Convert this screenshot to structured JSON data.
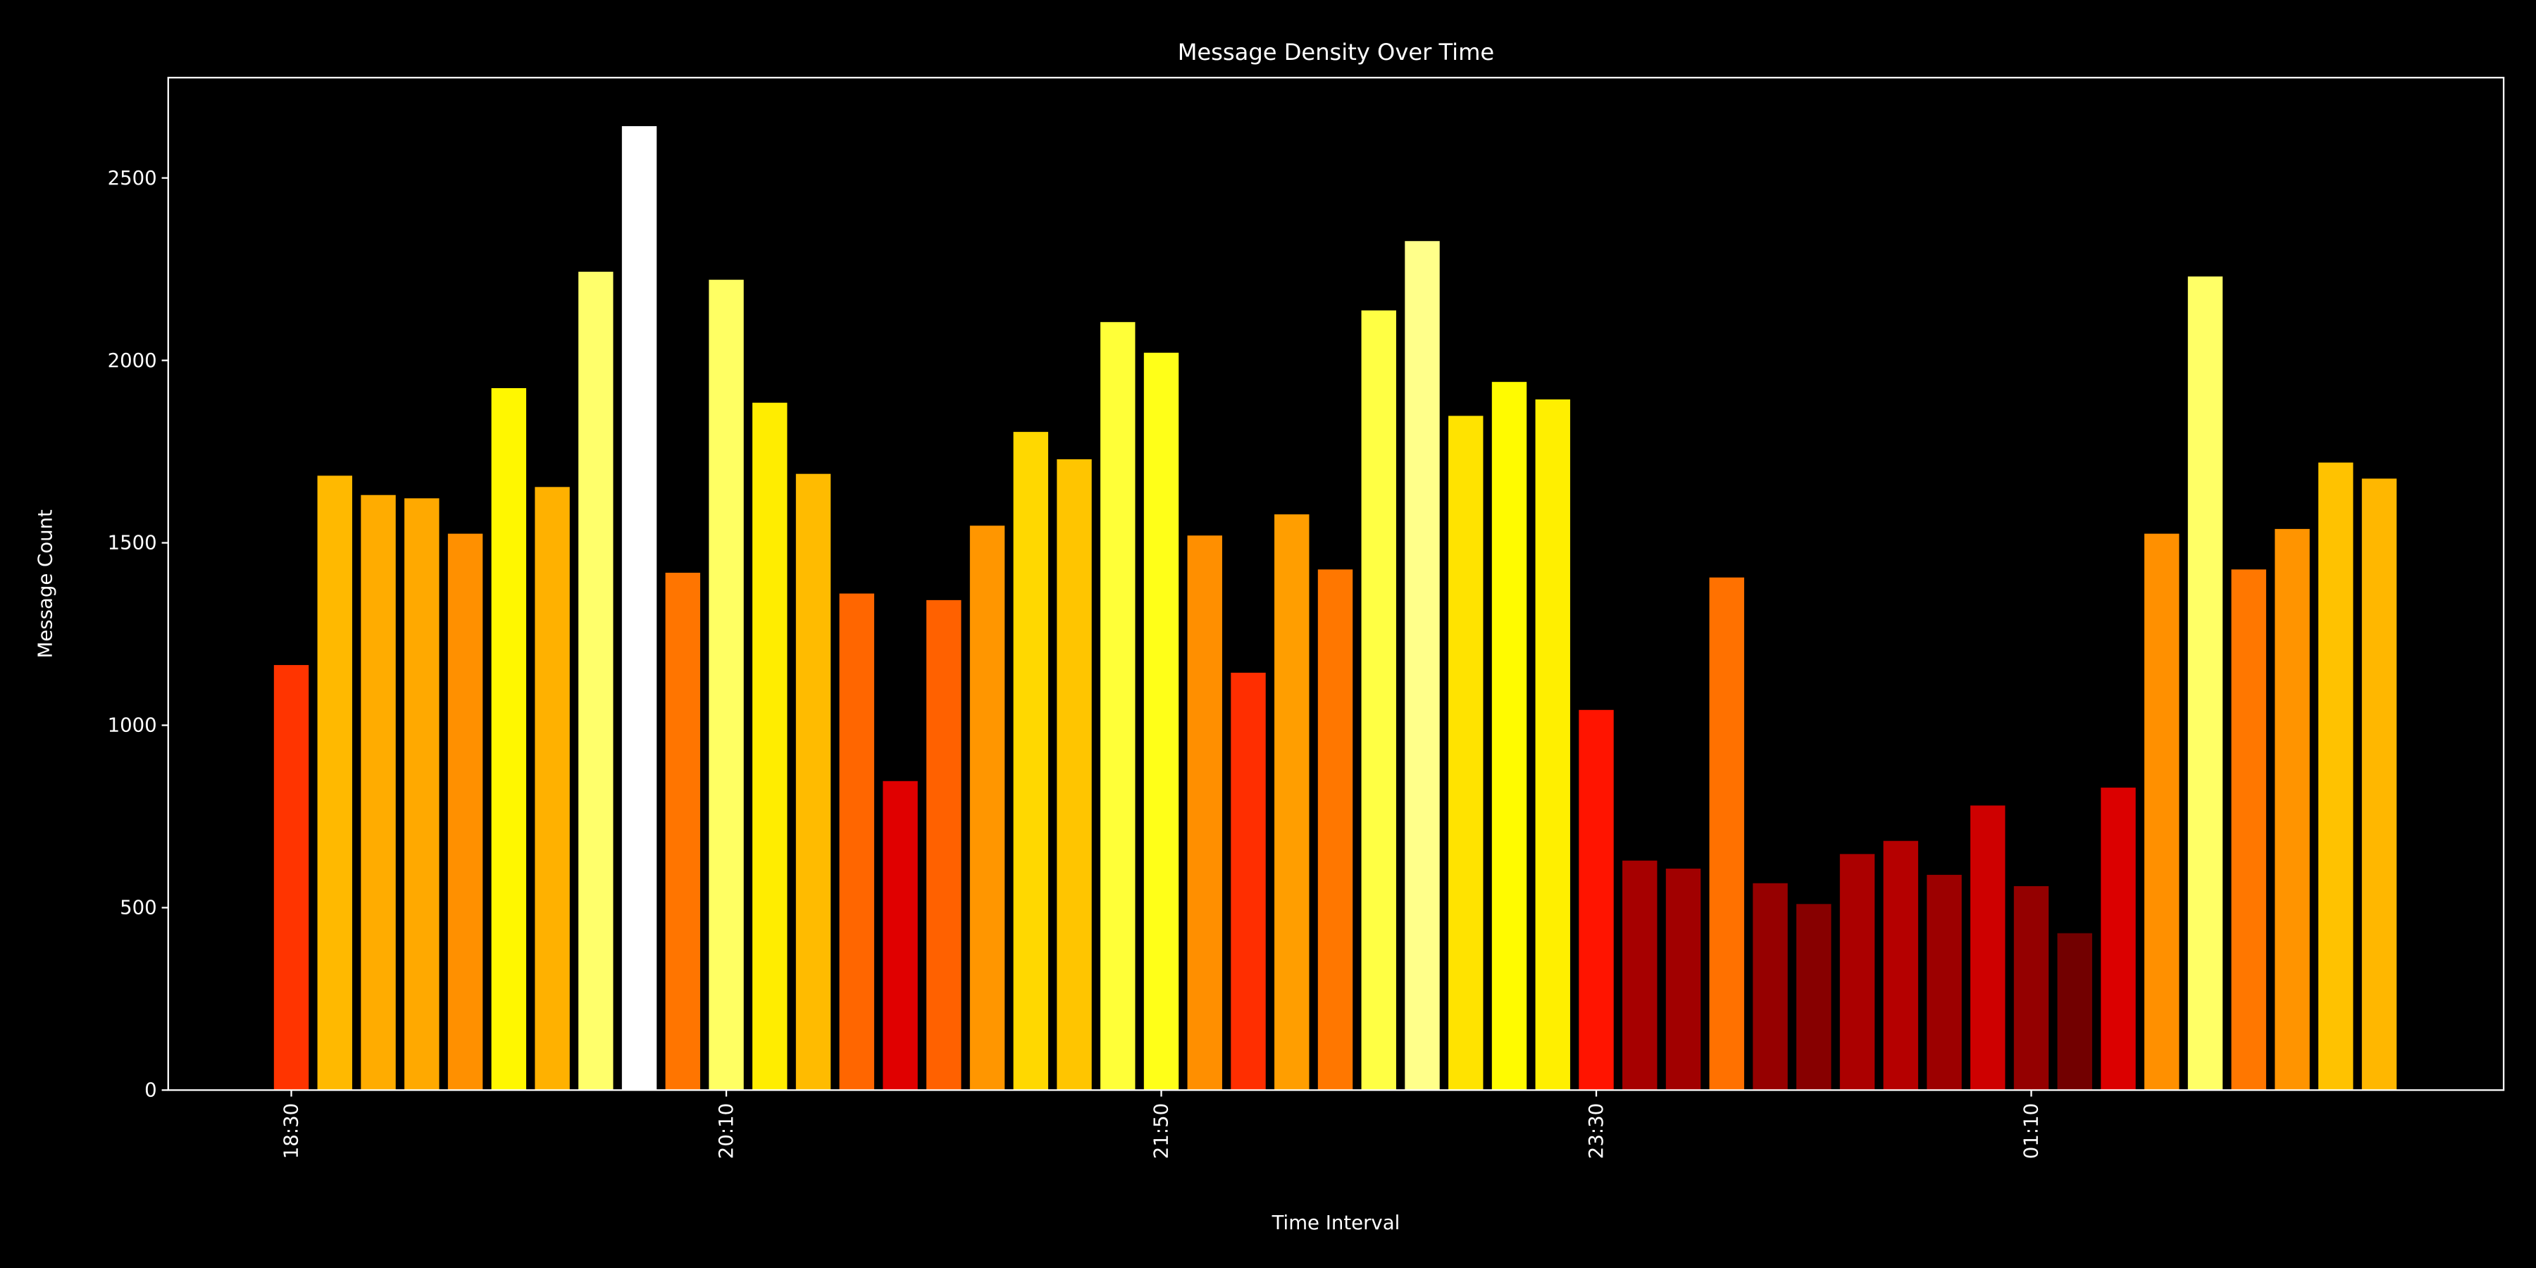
{
  "chart_data": {
    "type": "bar",
    "title": "Message Density Over Time",
    "xlabel": "Time Interval",
    "ylabel": "Message Count",
    "ylim": [
      0,
      2775
    ],
    "yticks": [
      0,
      500,
      1000,
      1500,
      2000,
      2500
    ],
    "xtick_labels": [
      "18:30",
      "20:10",
      "21:50",
      "23:30",
      "01:10"
    ],
    "colormap": "hot",
    "background": "#000000",
    "grid": false,
    "categories": [
      "18:30",
      "18:40",
      "18:50",
      "19:00",
      "19:10",
      "19:20",
      "19:30",
      "19:40",
      "19:50",
      "20:00",
      "20:10",
      "20:20",
      "20:30",
      "20:40",
      "20:50",
      "21:00",
      "21:10",
      "21:20",
      "21:30",
      "21:40",
      "21:50",
      "22:00",
      "22:10",
      "22:20",
      "22:30",
      "22:40",
      "22:50",
      "23:00",
      "23:10",
      "23:20",
      "23:30",
      "23:40",
      "23:50",
      "00:00",
      "00:10",
      "00:20",
      "00:30",
      "00:40",
      "00:50",
      "01:00",
      "01:10",
      "01:20",
      "01:30",
      "01:40",
      "01:50",
      "02:00",
      "02:10",
      "02:20",
      "02:30"
    ],
    "values": [
      1165,
      1684,
      1631,
      1622,
      1525,
      1924,
      1653,
      2243,
      2642,
      1418,
      2221,
      1884,
      1689,
      1361,
      847,
      1343,
      1547,
      1804,
      1729,
      2105,
      2021,
      1520,
      1144,
      1578,
      1427,
      2137,
      2327,
      1848,
      1941,
      1893,
      1042,
      629,
      607,
      1405,
      567,
      510,
      647,
      683,
      590,
      780,
      559,
      430,
      829,
      1525,
      2230,
      1427,
      1538,
      1720,
      1676
    ]
  }
}
